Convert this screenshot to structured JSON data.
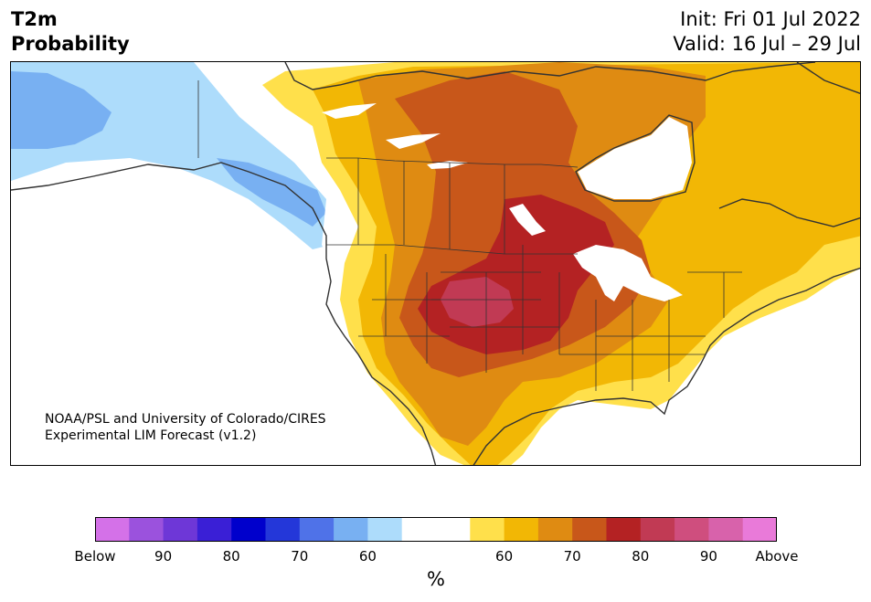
{
  "title": {
    "variable": "T2m",
    "kind": "Probability",
    "init": "Init: Fri 01 Jul 2022",
    "valid": "Valid: 16 Jul – 29 Jul"
  },
  "credit": {
    "line1": "NOAA/PSL and University of Colorado/CIRES",
    "line2": "Experimental LIM Forecast (v1.2)"
  },
  "colorbar": {
    "colors": [
      "#d471e8",
      "#9b52dd",
      "#6e37d7",
      "#3a1fd6",
      "#0000cc",
      "#2437d9",
      "#4f72e8",
      "#78b0f2",
      "#addcfb",
      "#ffffff",
      "#ffffff",
      "#ffe04b",
      "#f2b705",
      "#df8b12",
      "#c8571a",
      "#b42223",
      "#c13a54",
      "#cf4e7e",
      "#d862ab",
      "#e97ad9"
    ],
    "ticks": [
      "Below",
      "90",
      "80",
      "70",
      "60",
      "60",
      "70",
      "80",
      "90",
      "Above"
    ],
    "unit": "%"
  },
  "map": {
    "shading_colors": {
      "above_60": "#ffe04b",
      "above_65": "#f2b705",
      "above_70": "#df8b12",
      "above_75": "#c8571a",
      "above_80": "#b42223",
      "above_85": "#c13a54",
      "below_60": "#addcfb",
      "below_65": "#78b0f2"
    }
  }
}
